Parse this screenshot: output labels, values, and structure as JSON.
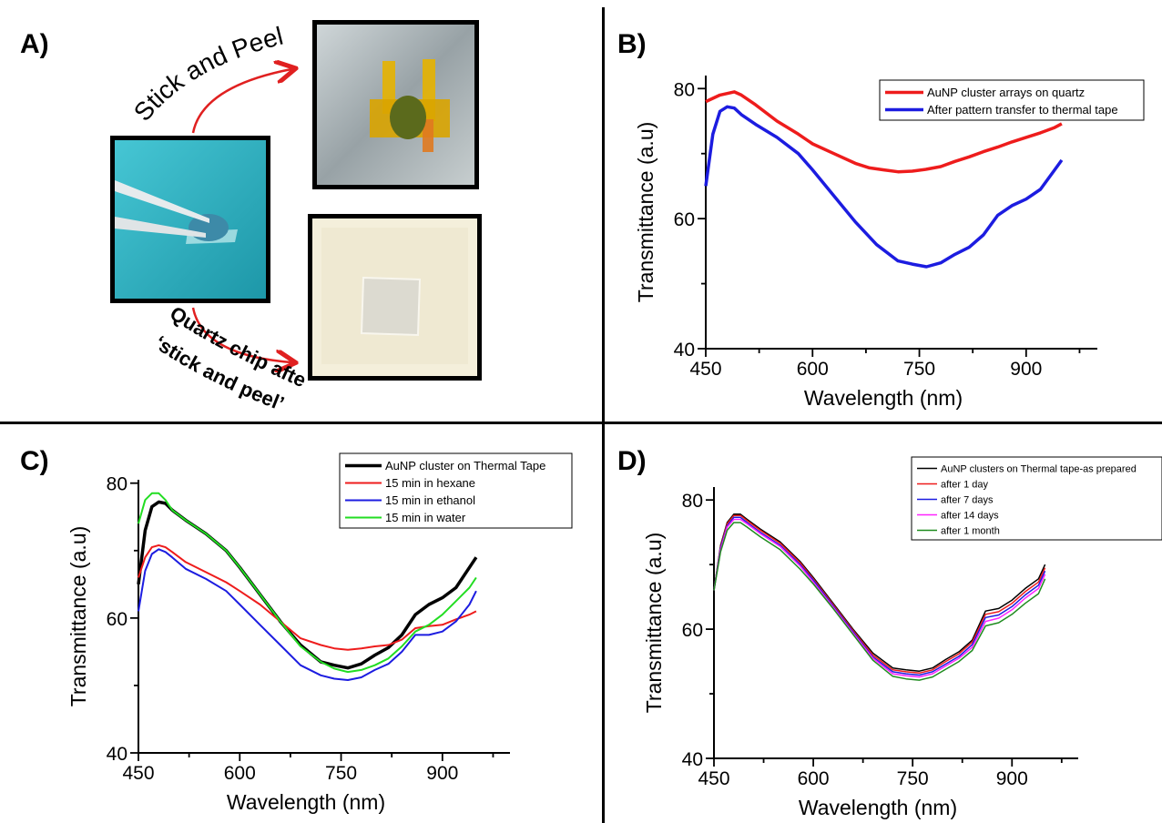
{
  "panels": {
    "a": {
      "label": "A)"
    },
    "b": {
      "label": "B)"
    },
    "c": {
      "label": "C)"
    },
    "d": {
      "label": "D)"
    }
  },
  "panel_a": {
    "stick_text": "Stick and Peel",
    "after_text_line1": "Quartz chip after",
    "after_text_line2": "‘stick and peel’",
    "colors": {
      "arrow": "#e02020",
      "water_bg": "#2fb9c9",
      "tape": "#e8b400"
    }
  },
  "chart_data": [
    {
      "id": "b",
      "type": "line",
      "xlabel": "Wavelength (nm)",
      "ylabel": "Transmittance (a.u)",
      "xlim": [
        450,
        1000
      ],
      "ylim": [
        40,
        82
      ],
      "xticks": [
        450,
        600,
        750,
        900
      ],
      "yticks": [
        40,
        60,
        80
      ],
      "legend_position": "top-right",
      "series": [
        {
          "name": "AuNP cluster arrays on quartz",
          "color": "#ee1c1c",
          "width": 3.5,
          "x": [
            450,
            470,
            490,
            500,
            520,
            550,
            580,
            600,
            630,
            660,
            680,
            700,
            720,
            740,
            760,
            780,
            800,
            820,
            840,
            860,
            880,
            900,
            920,
            940,
            950
          ],
          "y": [
            78,
            79,
            79.5,
            79,
            77.5,
            75,
            73,
            71.5,
            70,
            68.5,
            67.8,
            67.5,
            67.2,
            67.3,
            67.6,
            68,
            68.8,
            69.5,
            70.3,
            71,
            71.8,
            72.5,
            73.2,
            74,
            74.6
          ]
        },
        {
          "name": "After pattern transfer to thermal tape",
          "color": "#1c1ce0",
          "width": 3.5,
          "x": [
            450,
            460,
            470,
            480,
            490,
            500,
            520,
            550,
            580,
            600,
            630,
            660,
            690,
            720,
            740,
            760,
            780,
            800,
            820,
            840,
            860,
            880,
            900,
            920,
            940,
            950
          ],
          "y": [
            65,
            73,
            76.5,
            77.2,
            77,
            76,
            74.5,
            72.5,
            70,
            67.5,
            63.5,
            59.5,
            56,
            53.5,
            53,
            52.6,
            53.2,
            54.5,
            55.6,
            57.5,
            60.5,
            62,
            63,
            64.5,
            67.5,
            69
          ]
        }
      ]
    },
    {
      "id": "c",
      "type": "line",
      "xlabel": "Wavelength (nm)",
      "ylabel": "Transmittance (a.u)",
      "xlim": [
        450,
        1000
      ],
      "ylim": [
        40,
        80.5
      ],
      "xticks": [
        450,
        600,
        750,
        900
      ],
      "yticks": [
        40,
        60,
        80
      ],
      "legend_position": "top-right",
      "series": [
        {
          "name": "AuNP cluster on Thermal Tape",
          "color": "#000000",
          "width": 3.5,
          "x": [
            450,
            460,
            470,
            480,
            490,
            500,
            520,
            550,
            580,
            600,
            630,
            660,
            690,
            720,
            740,
            760,
            780,
            800,
            820,
            840,
            860,
            880,
            900,
            920,
            940,
            950
          ],
          "y": [
            65,
            73,
            76.5,
            77.2,
            77,
            76,
            74.5,
            72.5,
            70,
            67.5,
            63.5,
            59.5,
            56,
            53.5,
            53,
            52.6,
            53.2,
            54.5,
            55.6,
            57.5,
            60.5,
            62,
            63,
            64.5,
            67.5,
            69
          ]
        },
        {
          "name": "15 min in hexane",
          "color": "#ee1c1c",
          "width": 2,
          "x": [
            450,
            460,
            470,
            480,
            490,
            500,
            520,
            550,
            580,
            600,
            630,
            660,
            690,
            720,
            740,
            760,
            780,
            800,
            820,
            840,
            860,
            880,
            900,
            920,
            940,
            950
          ],
          "y": [
            66,
            69,
            70.5,
            70.8,
            70.5,
            69.8,
            68.3,
            66.8,
            65.3,
            64,
            62,
            59.5,
            57,
            56,
            55.5,
            55.3,
            55.5,
            55.8,
            56,
            56.8,
            58.5,
            58.8,
            59,
            59.8,
            60.5,
            61
          ]
        },
        {
          "name": "15 min in ethanol",
          "color": "#1c1ce0",
          "width": 2,
          "x": [
            450,
            460,
            470,
            480,
            490,
            500,
            520,
            550,
            580,
            600,
            630,
            660,
            690,
            720,
            740,
            760,
            780,
            800,
            820,
            840,
            860,
            880,
            900,
            920,
            940,
            950
          ],
          "y": [
            61,
            67,
            69.5,
            70.2,
            69.8,
            69,
            67.3,
            65.8,
            64,
            62,
            59,
            56,
            53,
            51.5,
            51,
            50.8,
            51.2,
            52.3,
            53.2,
            55,
            57.5,
            57.5,
            58,
            59.5,
            62,
            64
          ]
        },
        {
          "name": "15 min in water",
          "color": "#22dd22",
          "width": 2,
          "x": [
            450,
            460,
            470,
            480,
            490,
            500,
            520,
            550,
            580,
            600,
            630,
            660,
            690,
            720,
            740,
            760,
            780,
            800,
            820,
            840,
            860,
            880,
            900,
            920,
            940,
            950
          ],
          "y": [
            74,
            77.5,
            78.5,
            78.5,
            77.5,
            76,
            74.5,
            72.5,
            70,
            67.5,
            63.5,
            59.5,
            55.8,
            53.5,
            52.5,
            52,
            52.3,
            53,
            54,
            55.8,
            58,
            59,
            60.5,
            62.5,
            64.5,
            66
          ]
        }
      ]
    },
    {
      "id": "d",
      "type": "line",
      "xlabel": "Wavelength (nm)",
      "ylabel": "Transmittance (a.u)",
      "xlim": [
        450,
        1000
      ],
      "ylim": [
        40,
        82
      ],
      "xticks": [
        450,
        600,
        750,
        900
      ],
      "yticks": [
        40,
        60,
        80
      ],
      "legend_position": "top-right",
      "series": [
        {
          "name": "AuNP clusters on Thermal tape-as prepared",
          "color": "#000000",
          "width": 1.5,
          "x": [
            450,
            460,
            470,
            480,
            490,
            500,
            520,
            550,
            580,
            600,
            630,
            660,
            690,
            720,
            740,
            760,
            780,
            800,
            820,
            840,
            860,
            880,
            900,
            920,
            940,
            950
          ],
          "y": [
            66,
            73,
            76.5,
            77.8,
            77.8,
            77,
            75.5,
            73.5,
            70.5,
            68,
            64,
            60,
            56.3,
            54,
            53.7,
            53.5,
            54,
            55.3,
            56.5,
            58.3,
            62.8,
            63.2,
            64.5,
            66.3,
            67.8,
            70
          ]
        },
        {
          "name": "after 1 day",
          "color": "#ee1c1c",
          "width": 1.5,
          "x": [
            450,
            460,
            470,
            480,
            490,
            500,
            520,
            550,
            580,
            600,
            630,
            660,
            690,
            720,
            740,
            760,
            780,
            800,
            820,
            840,
            860,
            880,
            900,
            920,
            940,
            950
          ],
          "y": [
            66,
            72.8,
            76.3,
            77.6,
            77.6,
            76.8,
            75.3,
            73.3,
            70.3,
            67.8,
            63.8,
            59.8,
            56,
            53.7,
            53.4,
            53.2,
            53.7,
            55,
            56.2,
            58,
            62.3,
            62.7,
            64,
            65.8,
            67.3,
            69.5
          ]
        },
        {
          "name": "after 7 days",
          "color": "#1c1ce0",
          "width": 1.5,
          "x": [
            450,
            460,
            470,
            480,
            490,
            500,
            520,
            550,
            580,
            600,
            630,
            660,
            690,
            720,
            740,
            760,
            780,
            800,
            820,
            840,
            860,
            880,
            900,
            920,
            940,
            950
          ],
          "y": [
            66,
            72.6,
            76,
            77.3,
            77.3,
            76.5,
            75,
            73,
            70,
            67.6,
            63.6,
            59.6,
            55.7,
            53.4,
            53.1,
            52.9,
            53.4,
            54.6,
            55.8,
            57.6,
            61.8,
            62.2,
            63.5,
            65.3,
            66.8,
            69
          ]
        },
        {
          "name": "after 14 days",
          "color": "#ff22ff",
          "width": 1.5,
          "x": [
            450,
            460,
            470,
            480,
            490,
            500,
            520,
            550,
            580,
            600,
            630,
            660,
            690,
            720,
            740,
            760,
            780,
            800,
            820,
            840,
            860,
            880,
            900,
            920,
            940,
            950
          ],
          "y": [
            66,
            72.3,
            75.8,
            77,
            77,
            76.3,
            74.8,
            72.8,
            69.8,
            67.3,
            63.4,
            59.4,
            55.5,
            53.1,
            52.8,
            52.6,
            53.1,
            54.3,
            55.5,
            57.2,
            61.2,
            61.7,
            63,
            64.8,
            66.3,
            68.5
          ]
        },
        {
          "name": "after 1 month",
          "color": "#1f8c1f",
          "width": 1.5,
          "x": [
            450,
            460,
            470,
            480,
            490,
            500,
            520,
            550,
            580,
            600,
            630,
            660,
            690,
            720,
            740,
            760,
            780,
            800,
            820,
            840,
            860,
            880,
            900,
            920,
            940,
            950
          ],
          "y": [
            66,
            72,
            75.3,
            76.5,
            76.5,
            75.8,
            74.3,
            72.3,
            69.3,
            67,
            63.2,
            59.2,
            55.2,
            52.7,
            52.3,
            52.1,
            52.6,
            53.8,
            55,
            56.7,
            60.5,
            61,
            62.3,
            64,
            65.5,
            67.8
          ]
        }
      ]
    }
  ]
}
